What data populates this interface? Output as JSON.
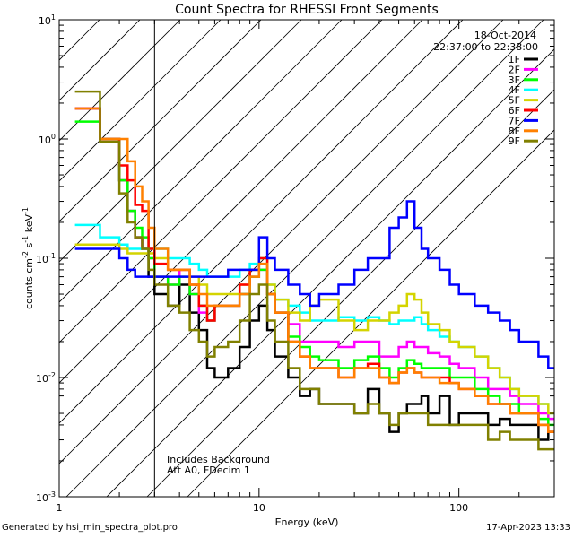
{
  "chart_data": {
    "type": "line",
    "title": "Count Spectra for RHESSI Front Segments",
    "xlabel": "Energy (keV)",
    "ylabel": "counts cm^-2 s^-1 keV^-1",
    "xscale": "log",
    "yscale": "log",
    "xlim": [
      1,
      300
    ],
    "ylim": [
      0.001,
      10
    ],
    "x_ticks": [
      {
        "v": 1,
        "label": "1"
      },
      {
        "v": 10,
        "label": "10"
      },
      {
        "v": 100,
        "label": "100"
      }
    ],
    "y_ticks": [
      {
        "v": 0.001,
        "base": "10",
        "exp": "-3"
      },
      {
        "v": 0.01,
        "base": "10",
        "exp": "-2"
      },
      {
        "v": 0.1,
        "base": "10",
        "exp": "-1"
      },
      {
        "v": 1,
        "base": "10",
        "exp": "0"
      },
      {
        "v": 10,
        "base": "10",
        "exp": "1"
      }
    ],
    "date": "18-Oct-2014",
    "time_range": "22:37:00 to 22:38:00",
    "hatched_region_x": [
      1,
      3
    ],
    "annotations": [
      "Includes Background",
      "Att A0, FDecim 1"
    ],
    "legend_position": "top-right",
    "energy_bins": [
      1.2,
      1.4,
      1.6,
      1.8,
      2.0,
      2.2,
      2.4,
      2.6,
      2.8,
      3.0,
      3.5,
      4.0,
      4.5,
      5.0,
      5.5,
      6.0,
      7.0,
      8.0,
      9.0,
      10.0,
      11.0,
      12.0,
      14.0,
      16.0,
      18.0,
      20.0,
      25.0,
      30.0,
      35.0,
      40.0,
      45.0,
      50.0,
      55.0,
      60.0,
      65.0,
      70.0,
      80.0,
      90.0,
      100.0,
      120.0,
      140.0,
      160.0,
      180.0,
      200.0,
      250.0,
      280.0
    ],
    "series": [
      {
        "name": "1F",
        "color": "#000000",
        "values": [
          1.8,
          1.8,
          1.0,
          1.0,
          0.45,
          0.25,
          0.15,
          0.12,
          0.07,
          0.05,
          0.04,
          0.06,
          0.035,
          0.025,
          0.012,
          0.01,
          0.012,
          0.018,
          0.03,
          0.04,
          0.025,
          0.015,
          0.01,
          0.007,
          0.008,
          0.006,
          0.006,
          0.005,
          0.008,
          0.005,
          0.0035,
          0.005,
          0.006,
          0.006,
          0.007,
          0.005,
          0.007,
          0.004,
          0.005,
          0.005,
          0.004,
          0.0045,
          0.004,
          0.004,
          0.003,
          0.0035
        ]
      },
      {
        "name": "2F",
        "color": "#ff00ff",
        "values": [
          1.8,
          1.8,
          1.0,
          1.0,
          0.45,
          0.25,
          0.15,
          0.12,
          0.1,
          0.07,
          0.06,
          0.08,
          0.05,
          0.035,
          0.03,
          0.04,
          0.04,
          0.05,
          0.07,
          0.08,
          0.05,
          0.035,
          0.028,
          0.02,
          0.02,
          0.02,
          0.018,
          0.02,
          0.02,
          0.015,
          0.015,
          0.018,
          0.02,
          0.018,
          0.018,
          0.016,
          0.015,
          0.013,
          0.012,
          0.01,
          0.008,
          0.008,
          0.007,
          0.006,
          0.005,
          0.0045
        ]
      },
      {
        "name": "3F",
        "color": "#00ff00",
        "values": [
          1.4,
          1.4,
          1.0,
          1.0,
          0.45,
          0.25,
          0.18,
          0.15,
          0.1,
          0.07,
          0.06,
          0.07,
          0.05,
          0.04,
          0.03,
          0.04,
          0.04,
          0.05,
          0.07,
          0.08,
          0.05,
          0.035,
          0.022,
          0.018,
          0.015,
          0.014,
          0.012,
          0.014,
          0.015,
          0.012,
          0.01,
          0.012,
          0.014,
          0.013,
          0.012,
          0.012,
          0.012,
          0.01,
          0.01,
          0.008,
          0.007,
          0.006,
          0.006,
          0.005,
          0.0045,
          0.004
        ]
      },
      {
        "name": "4F",
        "color": "#00ffff",
        "values": [
          0.19,
          0.19,
          0.15,
          0.15,
          0.13,
          0.12,
          0.12,
          0.12,
          0.12,
          0.12,
          0.1,
          0.1,
          0.09,
          0.08,
          0.07,
          0.07,
          0.07,
          0.08,
          0.09,
          0.1,
          0.06,
          0.045,
          0.04,
          0.035,
          0.03,
          0.03,
          0.032,
          0.03,
          0.032,
          0.03,
          0.028,
          0.03,
          0.03,
          0.032,
          0.028,
          0.025,
          0.022,
          0.02,
          0.018,
          0.015,
          0.012,
          0.01,
          0.008,
          0.007,
          0.006,
          0.005
        ]
      },
      {
        "name": "5F",
        "color": "#d4d400",
        "values": [
          0.13,
          0.13,
          0.13,
          0.13,
          0.12,
          0.11,
          0.11,
          0.11,
          0.11,
          0.1,
          0.08,
          0.08,
          0.07,
          0.06,
          0.05,
          0.05,
          0.05,
          0.06,
          0.08,
          0.1,
          0.06,
          0.045,
          0.035,
          0.03,
          0.04,
          0.045,
          0.03,
          0.025,
          0.03,
          0.03,
          0.035,
          0.04,
          0.05,
          0.045,
          0.035,
          0.028,
          0.025,
          0.02,
          0.018,
          0.015,
          0.012,
          0.01,
          0.008,
          0.007,
          0.006,
          0.005
        ]
      },
      {
        "name": "6F",
        "color": "#ff0000",
        "values": [
          1.8,
          1.8,
          1.0,
          1.0,
          0.6,
          0.45,
          0.28,
          0.25,
          0.12,
          0.09,
          0.08,
          0.08,
          0.06,
          0.04,
          0.03,
          0.04,
          0.04,
          0.06,
          0.08,
          0.1,
          0.05,
          0.035,
          0.02,
          0.015,
          0.012,
          0.012,
          0.01,
          0.012,
          0.013,
          0.01,
          0.009,
          0.011,
          0.012,
          0.011,
          0.01,
          0.01,
          0.01,
          0.009,
          0.008,
          0.007,
          0.006,
          0.006,
          0.005,
          0.005,
          0.004,
          0.0035
        ]
      },
      {
        "name": "7F",
        "color": "#0000ff",
        "values": [
          0.12,
          0.12,
          0.12,
          0.12,
          0.1,
          0.08,
          0.07,
          0.07,
          0.07,
          0.07,
          0.07,
          0.07,
          0.07,
          0.07,
          0.07,
          0.07,
          0.08,
          0.08,
          0.08,
          0.15,
          0.1,
          0.08,
          0.06,
          0.05,
          0.04,
          0.05,
          0.06,
          0.08,
          0.1,
          0.1,
          0.18,
          0.22,
          0.3,
          0.18,
          0.12,
          0.1,
          0.08,
          0.06,
          0.05,
          0.04,
          0.035,
          0.03,
          0.025,
          0.02,
          0.015,
          0.012
        ]
      },
      {
        "name": "8F",
        "color": "#ff8000",
        "values": [
          1.8,
          1.8,
          1.0,
          1.0,
          1.0,
          0.65,
          0.4,
          0.3,
          0.18,
          0.12,
          0.08,
          0.08,
          0.06,
          0.05,
          0.04,
          0.04,
          0.04,
          0.05,
          0.07,
          0.09,
          0.05,
          0.035,
          0.02,
          0.015,
          0.012,
          0.012,
          0.01,
          0.012,
          0.012,
          0.01,
          0.009,
          0.011,
          0.012,
          0.011,
          0.01,
          0.01,
          0.009,
          0.009,
          0.008,
          0.007,
          0.006,
          0.006,
          0.005,
          0.005,
          0.004,
          0.0035
        ]
      },
      {
        "name": "9F",
        "color": "#808000",
        "values": [
          2.5,
          2.5,
          0.95,
          0.95,
          0.35,
          0.2,
          0.15,
          0.12,
          0.08,
          0.06,
          0.04,
          0.035,
          0.025,
          0.02,
          0.015,
          0.018,
          0.02,
          0.03,
          0.05,
          0.06,
          0.03,
          0.02,
          0.012,
          0.008,
          0.008,
          0.006,
          0.006,
          0.005,
          0.006,
          0.005,
          0.004,
          0.005,
          0.005,
          0.005,
          0.005,
          0.004,
          0.004,
          0.004,
          0.004,
          0.004,
          0.003,
          0.0035,
          0.003,
          0.003,
          0.0025,
          0.0025
        ]
      }
    ]
  },
  "footer": {
    "left": "Generated by hsi_min_spectra_plot.pro",
    "right": "17-Apr-2023 13:33"
  }
}
